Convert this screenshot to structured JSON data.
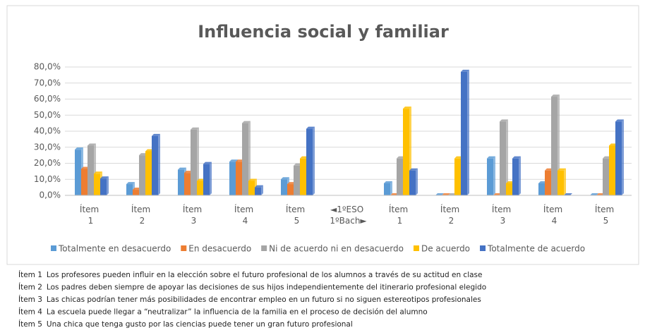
{
  "chart_data": {
    "type": "bar",
    "title": "Influencia social y familiar",
    "categories": [
      "Ítem 1",
      "Ítem 2",
      "Ítem 3",
      "Ítem 4",
      "Ítem 5",
      "◄1ºESO 1ºBach►",
      "Ítem 1",
      "Ítem 2",
      "Ítem 3",
      "Ítem 4",
      "Ítem 5"
    ],
    "series": [
      {
        "name": "Totalmente  en desacuerdo",
        "color": "#5b9bd5",
        "values": [
          28.5,
          7,
          16,
          21,
          10,
          null,
          7.5,
          0,
          23,
          7.5,
          0
        ]
      },
      {
        "name": "En desacuerdo",
        "color": "#ed7d31",
        "values": [
          16.5,
          3.5,
          14,
          21,
          7,
          null,
          0,
          0,
          0,
          15.5,
          0
        ]
      },
      {
        "name": "Ni de acuerdo ni en desacuerdo",
        "color": "#a5a5a5",
        "values": [
          31,
          25,
          41,
          45,
          18.5,
          null,
          23,
          0,
          46,
          61.5,
          23
        ]
      },
      {
        "name": "De acuerdo",
        "color": "#ffc000",
        "values": [
          13.5,
          27.5,
          9,
          9,
          23,
          null,
          54,
          23,
          7.5,
          15.5,
          31
        ]
      },
      {
        "name": "Totalmente de acuerdo",
        "color": "#4472c4",
        "values": [
          10.5,
          37,
          19.5,
          5,
          41.5,
          null,
          15.5,
          77,
          23,
          0,
          46
        ]
      }
    ],
    "ylim": [
      0,
      80
    ],
    "yticks": [
      {
        "value": 0,
        "label": "0,0%"
      },
      {
        "value": 10,
        "label": "10,0%"
      },
      {
        "value": 20,
        "label": "20,0%"
      },
      {
        "value": 30,
        "label": "30,0%"
      },
      {
        "value": 40,
        "label": "40,0%"
      },
      {
        "value": 50,
        "label": "50,0%"
      },
      {
        "value": 60,
        "label": "60,0%"
      },
      {
        "value": 70,
        "label": "70,0%"
      },
      {
        "value": 80,
        "label": "80,0%"
      }
    ],
    "grid": true,
    "legend": "bottom",
    "notes": [
      {
        "label": "Ítem 1",
        "text": "Los profesores pueden influir en la elección sobre el futuro profesional de los alumnos a través de su actitud en clase"
      },
      {
        "label": "Ítem 2",
        "text": "Los padres deben siempre de apoyar las decisiones de sus hijos independientemente del itinerario profesional elegido"
      },
      {
        "label": "Ítem 3",
        "text": "Las chicas podrían tener más posibilidades de encontrar empleo en un futuro si no siguen estereotipos profesionales"
      },
      {
        "label": "Ítem 4",
        "text": "La escuela puede llegar a “neutralizar” la influencia de la familia en el proceso de decisión del alumno"
      },
      {
        "label": "Ítem 5",
        "text": "Una chica que tenga gusto por las ciencias  puede tener un gran futuro profesional"
      }
    ]
  }
}
